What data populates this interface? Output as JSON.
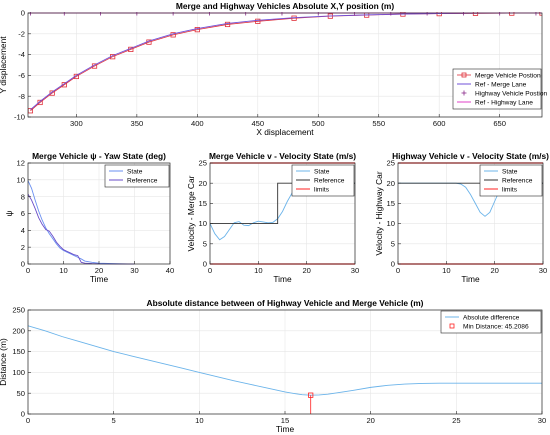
{
  "colors": {
    "merge_pos": "#e0303a",
    "ref_merge": "#7050d8",
    "highway_pos": "#8a2a8a",
    "ref_highway": "#e040c8",
    "state_blue": "#6a8ff0",
    "reference_dark": "#6a4cc8",
    "state_cyan": "#6cb4ea",
    "reference_black": "#333333",
    "limits": "#ff2020",
    "grid": "#e6e6e6"
  },
  "chart_data": [
    {
      "id": "top",
      "type": "scatter",
      "title": "Merge and Highway Vehicles Absolute X,Y position (m)",
      "xlabel": "X displacement",
      "ylabel": "Y displacement",
      "xlim": [
        260,
        685
      ],
      "ylim": [
        -10,
        0
      ],
      "xticks": [
        300,
        350,
        400,
        450,
        500,
        550,
        600,
        650
      ],
      "yticks": [
        -10,
        -8,
        -6,
        -4,
        -2,
        0
      ],
      "grid": true,
      "legend": "bottom-right",
      "series": [
        {
          "name": "Merge Vehicle Postion",
          "marker": "square",
          "color_key": "merge_pos",
          "x": [
            262,
            270,
            280,
            290,
            300,
            315,
            330,
            345,
            360,
            380,
            400,
            425,
            450,
            480,
            510,
            540,
            570,
            600,
            630,
            660,
            685
          ],
          "y": [
            -9.4,
            -8.6,
            -7.7,
            -6.9,
            -6.1,
            -5.1,
            -4.2,
            -3.5,
            -2.8,
            -2.1,
            -1.6,
            -1.1,
            -0.8,
            -0.5,
            -0.3,
            -0.2,
            -0.1,
            -0.06,
            -0.03,
            -0.01,
            0
          ]
        },
        {
          "name": "Ref - Merge Lane",
          "marker": "line",
          "color_key": "ref_merge",
          "x": [
            262,
            270,
            280,
            290,
            300,
            315,
            330,
            345,
            360,
            380,
            400,
            425,
            450,
            480,
            510,
            540,
            570,
            600,
            630,
            660,
            685
          ],
          "y": [
            -9.3,
            -8.5,
            -7.6,
            -6.8,
            -6.0,
            -5.0,
            -4.1,
            -3.4,
            -2.7,
            -2.0,
            -1.5,
            -1.0,
            -0.7,
            -0.45,
            -0.28,
            -0.18,
            -0.1,
            -0.05,
            -0.02,
            -0.01,
            0
          ]
        },
        {
          "name": "Highway Vehicle Postion",
          "marker": "plus",
          "color_key": "highway_pos",
          "x": [
            262,
            290,
            320,
            350,
            380,
            410,
            440,
            470,
            500,
            530,
            560,
            590,
            620,
            650,
            680
          ],
          "y": [
            0,
            0,
            0,
            0,
            0,
            0,
            0,
            0,
            0,
            0,
            0,
            0,
            0,
            0,
            0
          ]
        },
        {
          "name": "Ref - Highway Lane",
          "marker": "line",
          "color_key": "ref_highway",
          "x": [
            262,
            685
          ],
          "y": [
            0,
            0
          ]
        }
      ]
    },
    {
      "id": "yaw",
      "type": "line",
      "title": "Merge Vehicle ψ - Yaw State (deg)",
      "xlabel": "Time",
      "ylabel": "ψ",
      "xlim": [
        0,
        40
      ],
      "ylim": [
        0,
        12
      ],
      "xticks": [
        0,
        10,
        20,
        30,
        40
      ],
      "yticks": [
        0,
        2,
        4,
        6,
        8,
        10,
        12
      ],
      "grid": true,
      "legend": "top-right",
      "series": [
        {
          "name": "State",
          "color_key": "state_blue",
          "x": [
            0,
            1,
            2,
            3,
            4,
            5,
            6,
            7,
            8,
            9,
            10,
            11,
            12,
            13,
            14,
            15,
            16,
            18,
            20,
            25,
            30
          ],
          "y": [
            9.9,
            9.0,
            7.6,
            6.3,
            5.2,
            4.3,
            3.6,
            3.0,
            2.4,
            1.9,
            1.6,
            1.4,
            1.2,
            1.0,
            0.8,
            0.6,
            0.35,
            0.2,
            0.1,
            0.03,
            0
          ]
        },
        {
          "name": "Reference",
          "color_key": "reference_dark",
          "x": [
            0,
            1,
            2,
            3,
            4,
            5,
            6,
            7,
            8,
            9,
            10,
            11,
            12,
            13,
            14,
            15,
            16,
            18,
            20,
            25,
            30
          ],
          "y": [
            8.3,
            7.6,
            6.6,
            5.5,
            4.7,
            4.1,
            3.9,
            3.3,
            2.6,
            2.1,
            1.7,
            1.5,
            1.3,
            1.1,
            1.0,
            0.2,
            0.1,
            0.05,
            0.02,
            0,
            0
          ]
        }
      ]
    },
    {
      "id": "vmerge",
      "type": "line",
      "title": "Merge Vehicle v - Velocity State (m/s)",
      "xlabel": "Time",
      "ylabel": "Velocity - Merge Car",
      "xlim": [
        0,
        30
      ],
      "ylim": [
        0,
        25
      ],
      "xticks": [
        0,
        10,
        20,
        30
      ],
      "yticks": [
        0,
        5,
        10,
        15,
        20,
        25
      ],
      "grid": true,
      "legend": "top-right",
      "series": [
        {
          "name": "State",
          "color_key": "state_cyan",
          "x": [
            0,
            1,
            2,
            3,
            4,
            5,
            6,
            7,
            8,
            9,
            10,
            11,
            12,
            13,
            14,
            15,
            16,
            17,
            18,
            19,
            20,
            21,
            22,
            23,
            24,
            25,
            26,
            27,
            28,
            29,
            30
          ],
          "y": [
            10,
            7.5,
            6.0,
            6.8,
            8.5,
            10.2,
            10.5,
            9.6,
            9.5,
            10.2,
            10.6,
            10.4,
            10.2,
            10.3,
            11.2,
            13.0,
            15.5,
            17.6,
            19.2,
            20.3,
            20.6,
            20.4,
            20.2,
            20.1,
            20.0,
            20.0,
            20.0,
            20.0,
            20.0,
            20.0,
            20.0
          ]
        },
        {
          "name": "Reference",
          "color_key": "reference_black",
          "x": [
            0,
            14,
            14,
            30
          ],
          "y": [
            10,
            10,
            20,
            20
          ]
        },
        {
          "name": "limits",
          "color_key": "limits",
          "x": [
            0,
            30
          ],
          "y": [
            25,
            25
          ]
        },
        {
          "name": "limits",
          "color_key": "limits",
          "x": [
            0,
            30
          ],
          "y": [
            0,
            0
          ]
        }
      ]
    },
    {
      "id": "vhighway",
      "type": "line",
      "title": "Highway Vehicle v - Velocity State (m/s)",
      "xlabel": "Time",
      "ylabel": "Velocity - Highway Car",
      "xlim": [
        0,
        30
      ],
      "ylim": [
        0,
        25
      ],
      "xticks": [
        0,
        10,
        20,
        30
      ],
      "yticks": [
        0,
        5,
        10,
        15,
        20,
        25
      ],
      "grid": true,
      "legend": "top-right",
      "series": [
        {
          "name": "State",
          "color_key": "state_cyan",
          "x": [
            0,
            12,
            13,
            14,
            15,
            16,
            17,
            18,
            19,
            20,
            21,
            22,
            23,
            30
          ],
          "y": [
            20,
            20,
            19.8,
            19.0,
            17.2,
            15.0,
            12.8,
            11.8,
            12.8,
            15.5,
            18.2,
            19.6,
            20,
            20
          ]
        },
        {
          "name": "Reference",
          "color_key": "reference_black",
          "x": [
            0,
            30
          ],
          "y": [
            20,
            20
          ]
        },
        {
          "name": "limits",
          "color_key": "limits",
          "x": [
            0,
            30
          ],
          "y": [
            25,
            25
          ]
        },
        {
          "name": "limits",
          "color_key": "limits",
          "x": [
            0,
            30
          ],
          "y": [
            0,
            0
          ]
        }
      ]
    },
    {
      "id": "dist",
      "type": "line",
      "title": "Absolute distance between of Highway Vehicle and Merge Vehicle (m)",
      "xlabel": "Time",
      "ylabel": "Distance (m)",
      "xlim": [
        0,
        30
      ],
      "ylim": [
        0,
        250
      ],
      "xticks": [
        0,
        5,
        10,
        15,
        20,
        25,
        30
      ],
      "yticks": [
        0,
        50,
        100,
        150,
        200,
        250
      ],
      "grid": true,
      "legend": "top-right",
      "series": [
        {
          "name": "Absolute difference",
          "color_key": "state_cyan",
          "x": [
            0,
            1,
            2,
            3,
            4,
            5,
            6,
            7,
            8,
            9,
            10,
            11,
            12,
            13,
            14,
            15,
            15.5,
            16,
            16.5,
            17,
            17.5,
            18,
            19,
            20,
            21,
            22,
            23,
            24,
            25,
            26,
            27,
            28,
            29,
            30
          ],
          "y": [
            212,
            200,
            186,
            174,
            162,
            150,
            140,
            130,
            120,
            110,
            100,
            90,
            80,
            71,
            62,
            53,
            49.5,
            46.5,
            45.2,
            45.8,
            47.5,
            50.5,
            57,
            64,
            69,
            72,
            73.5,
            74,
            74,
            74,
            74,
            74,
            74,
            74
          ]
        },
        {
          "name": "Min Distance: 45.2086",
          "marker": "square",
          "color_key": "limits",
          "x": [
            16.5
          ],
          "y": [
            45.2086
          ]
        }
      ]
    }
  ]
}
